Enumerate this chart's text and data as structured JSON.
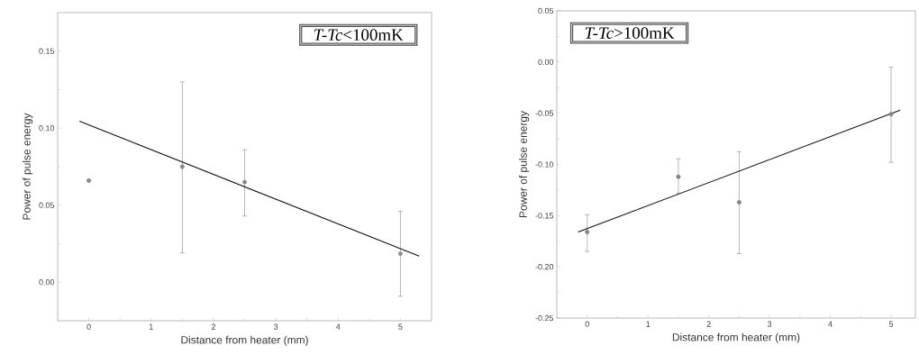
{
  "chart_data": [
    {
      "type": "scatter",
      "xlabel": "Distance from heater (mm)",
      "ylabel": "Power of pulse energy",
      "annotations": [
        "*T-Tc*<100mK"
      ],
      "xlim": [
        -0.5,
        5.5
      ],
      "ylim": [
        -0.025,
        0.175
      ],
      "xticks": [
        0,
        1,
        2,
        3,
        4,
        5
      ],
      "yticks": [
        {
          "value": 0,
          "label": "0.00"
        },
        {
          "value": 0.05,
          "label": "0.05"
        },
        {
          "value": 0.1,
          "label": "0.10"
        },
        {
          "value": 0.15,
          "label": "0.15"
        }
      ],
      "series": [
        {
          "color": "#888888",
          "marker": "circle",
          "x": [
            0,
            1.5,
            2.5,
            5
          ],
          "values": [
            0.066,
            0.075,
            0.065,
            0.0185
          ],
          "errors": [
            null,
            [
              0.019,
              0.13
            ],
            [
              0.043,
              0.086
            ],
            [
              -0.009,
              0.046
            ]
          ]
        },
        {
          "type": "line",
          "color": "#111111",
          "marker": "none",
          "line_style": "solid",
          "x": [
            -0.15,
            5.3
          ],
          "values": [
            0.1045,
            0.017
          ]
        }
      ]
    },
    {
      "type": "scatter",
      "xlabel": "Distance from heater (mm)",
      "ylabel": "Power of pulse energy",
      "annotations": [
        "*T-Tc*>100mK"
      ],
      "xlim": [
        -0.5,
        5.4
      ],
      "ylim": [
        -0.25,
        0.05
      ],
      "xticks": [
        0,
        1,
        2,
        3,
        4,
        5
      ],
      "yticks": [
        {
          "value": -0.25,
          "label": "-0.25"
        },
        {
          "value": -0.2,
          "label": "-0.20"
        },
        {
          "value": -0.15,
          "label": "-0.15"
        },
        {
          "value": -0.1,
          "label": "-0.10"
        },
        {
          "value": -0.05,
          "label": "-0.05"
        },
        {
          "value": 0,
          "label": "0.00"
        },
        {
          "value": 0.05,
          "label": "0.05"
        }
      ],
      "series": [
        {
          "color": "#888888",
          "marker": "circle",
          "x": [
            0,
            1.5,
            2.5,
            5
          ],
          "values": [
            -0.166,
            -0.112,
            -0.137,
            -0.051
          ],
          "errors": [
            [
              -0.185,
              -0.149
            ],
            [
              -0.128,
              -0.0945
            ],
            [
              -0.187,
              -0.0875
            ],
            [
              -0.098,
              -0.005
            ]
          ]
        },
        {
          "type": "line",
          "color": "#111111",
          "marker": "none",
          "line_style": "solid",
          "x": [
            -0.15,
            5.15
          ],
          "values": [
            -0.166,
            -0.047
          ]
        }
      ]
    }
  ]
}
